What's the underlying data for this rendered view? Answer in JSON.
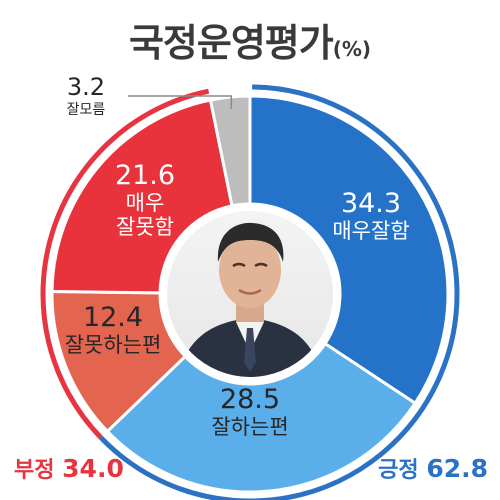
{
  "title": "국정운영평가",
  "unit": "(%)",
  "colors": {
    "very_good": "#2473c9",
    "somewhat_good": "#5aaeea",
    "somewhat_bad": "#e3644f",
    "very_bad": "#e8333c",
    "unknown": "#bdbdbd",
    "positive": "#2b72c4",
    "negative": "#e63541"
  },
  "chart_data": {
    "type": "pie",
    "title": "국정운영평가",
    "unit": "(%)",
    "slices": [
      {
        "label": "매우잘함",
        "value": 34.3,
        "color": "#2473c9"
      },
      {
        "label": "잘하는편",
        "value": 28.5,
        "color": "#5aaeea"
      },
      {
        "label": "잘못하는편",
        "value": 12.4,
        "color": "#e3644f"
      },
      {
        "label": "매우 잘못함",
        "value": 21.6,
        "color": "#e8333c"
      },
      {
        "label": "잘모름",
        "value": 3.2,
        "color": "#bdbdbd"
      }
    ],
    "totals": [
      {
        "label": "긍정",
        "value": 62.8,
        "color": "#2b72c4"
      },
      {
        "label": "부정",
        "value": 34.0,
        "color": "#e63541"
      }
    ]
  },
  "labels": {
    "very_good": {
      "value": "34.3",
      "text": "매우잘함"
    },
    "somewhat_good": {
      "value": "28.5",
      "text": "잘하는편"
    },
    "somewhat_bad": {
      "value": "12.4",
      "text": "잘못하는편"
    },
    "very_bad": {
      "value": "21.6",
      "line1": "매우",
      "line2": "잘못함"
    },
    "unknown": {
      "value": "3.2",
      "text": "잘모름"
    }
  },
  "totals": {
    "negative": {
      "label": "부정",
      "value": "34.0"
    },
    "positive": {
      "label": "긍정",
      "value": "62.8"
    }
  },
  "center": {
    "icon": "person-portrait-icon"
  }
}
